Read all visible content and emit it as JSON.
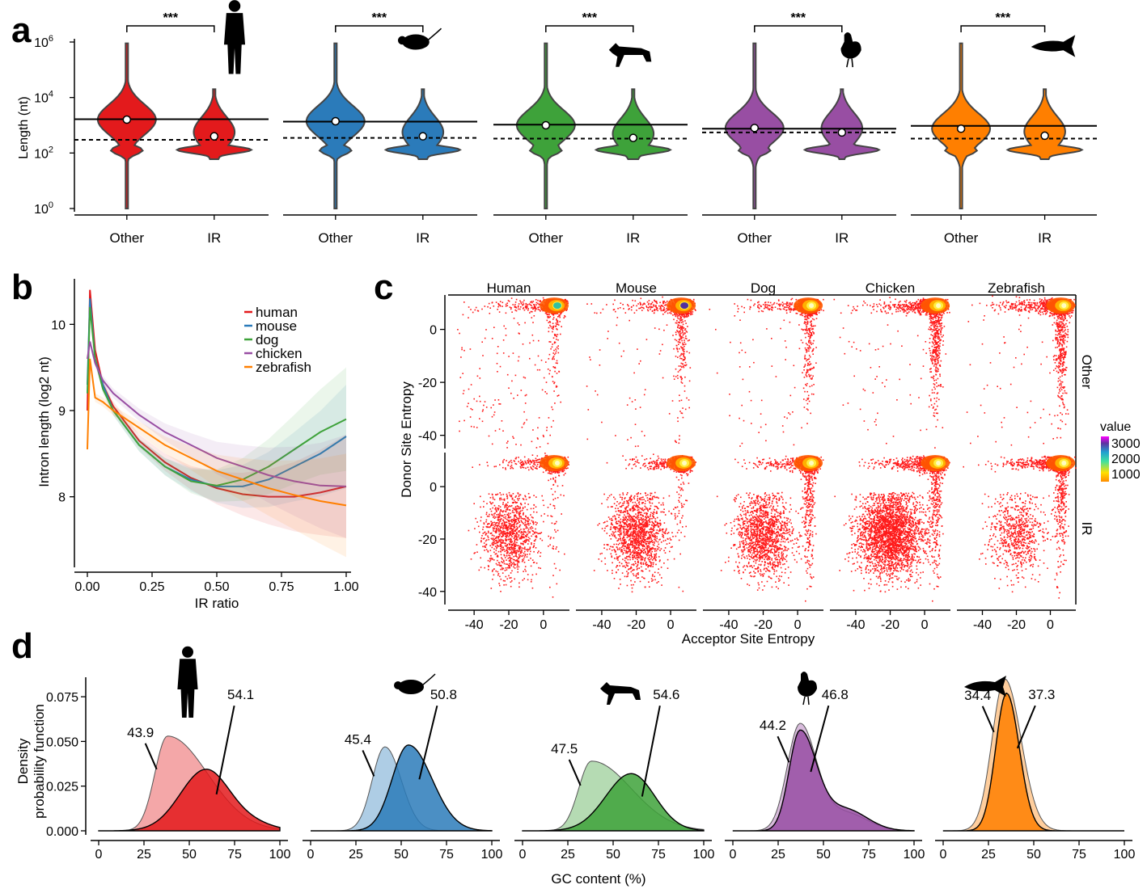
{
  "panels": {
    "a": "a",
    "b": "b",
    "c": "c",
    "d": "d"
  },
  "colors": {
    "human": "#e31a1c",
    "mouse": "#2b7bba",
    "dog": "#3ea23a",
    "chicken": "#984ea3",
    "zebrafish": "#ff7f00"
  },
  "chart_data": [
    {
      "id": "a",
      "type": "violin",
      "ylabel": "Length (nt)",
      "yscale": "log10",
      "ylim": [
        1,
        1000000
      ],
      "yticks": [
        {
          "value": 1,
          "label": "10",
          "exp": "0"
        },
        {
          "value": 100,
          "label": "10",
          "exp": "2"
        },
        {
          "value": 10000,
          "label": "10",
          "exp": "4"
        },
        {
          "value": 1000000,
          "label": "10",
          "exp": "6"
        }
      ],
      "categories": [
        "Other",
        "IR"
      ],
      "significance": "***",
      "species": [
        {
          "name": "human",
          "icon": "human-silhouette-icon",
          "other_median": 1600,
          "ir_median": 400,
          "other_line": 1650,
          "ir_line": 300
        },
        {
          "name": "mouse",
          "icon": "mouse-silhouette-icon",
          "other_median": 1400,
          "ir_median": 400,
          "other_line": 1350,
          "ir_line": 350
        },
        {
          "name": "dog",
          "icon": "dog-silhouette-icon",
          "other_median": 1000,
          "ir_median": 350,
          "other_line": 1050,
          "ir_line": 330
        },
        {
          "name": "chicken",
          "icon": "chicken-silhouette-icon",
          "other_median": 800,
          "ir_median": 550,
          "other_line": 750,
          "ir_line": 550
        },
        {
          "name": "zebrafish",
          "icon": "zebrafish-silhouette-icon",
          "other_median": 750,
          "ir_median": 420,
          "other_line": 950,
          "ir_line": 330
        }
      ]
    },
    {
      "id": "b",
      "type": "line",
      "xlabel": "IR ratio",
      "ylabel": "Intron length (log2 nt)",
      "xlim": [
        0,
        1
      ],
      "ylim": [
        7.2,
        10.5
      ],
      "xticks": [
        "0.00",
        "0.25",
        "0.50",
        "0.75",
        "1.00"
      ],
      "yticks": [
        "8",
        "9",
        "10"
      ],
      "series": [
        {
          "name": "human",
          "x": [
            0,
            0.01,
            0.03,
            0.06,
            0.1,
            0.2,
            0.3,
            0.4,
            0.5,
            0.6,
            0.7,
            0.8,
            0.9,
            1.0
          ],
          "y": [
            9.0,
            10.4,
            9.7,
            9.3,
            9.05,
            8.65,
            8.4,
            8.22,
            8.1,
            8.03,
            8.0,
            8.0,
            8.05,
            8.12
          ]
        },
        {
          "name": "mouse",
          "x": [
            0,
            0.01,
            0.03,
            0.06,
            0.1,
            0.2,
            0.3,
            0.4,
            0.5,
            0.6,
            0.7,
            0.8,
            0.9,
            1.0
          ],
          "y": [
            9.3,
            10.3,
            9.6,
            9.3,
            9.0,
            8.6,
            8.35,
            8.2,
            8.12,
            8.12,
            8.2,
            8.35,
            8.5,
            8.7
          ]
        },
        {
          "name": "dog",
          "x": [
            0,
            0.01,
            0.03,
            0.06,
            0.1,
            0.2,
            0.3,
            0.4,
            0.5,
            0.6,
            0.7,
            0.8,
            0.9,
            1.0
          ],
          "y": [
            9.2,
            10.2,
            9.6,
            9.25,
            9.0,
            8.6,
            8.35,
            8.18,
            8.13,
            8.2,
            8.35,
            8.55,
            8.75,
            8.9
          ]
        },
        {
          "name": "chicken",
          "x": [
            0,
            0.01,
            0.03,
            0.06,
            0.1,
            0.2,
            0.3,
            0.4,
            0.5,
            0.6,
            0.7,
            0.8,
            0.9,
            1.0
          ],
          "y": [
            9.6,
            9.8,
            9.55,
            9.35,
            9.2,
            8.95,
            8.75,
            8.6,
            8.45,
            8.35,
            8.25,
            8.18,
            8.13,
            8.12
          ]
        },
        {
          "name": "zebrafish",
          "x": [
            0,
            0.01,
            0.03,
            0.06,
            0.1,
            0.2,
            0.3,
            0.4,
            0.5,
            0.6,
            0.7,
            0.8,
            0.9,
            1.0
          ],
          "y": [
            8.55,
            9.6,
            9.15,
            9.1,
            9.0,
            8.8,
            8.6,
            8.45,
            8.3,
            8.2,
            8.1,
            8.02,
            7.95,
            7.9
          ]
        }
      ],
      "legend": [
        "human",
        "mouse",
        "dog",
        "chicken",
        "zebrafish"
      ],
      "legend_position": "top-right"
    },
    {
      "id": "c",
      "type": "scatter",
      "xlabel": "Acceptor Site Entropy",
      "ylabel": "Donor Site Entropy",
      "columns": [
        "Human",
        "Mouse",
        "Dog",
        "Chicken",
        "Zebrafish"
      ],
      "rows": [
        "Other",
        "IR"
      ],
      "xticks": [
        "-40",
        "-20",
        "0"
      ],
      "yticks": [
        "0",
        "-20",
        "-40"
      ],
      "xlim": [
        -55,
        15
      ],
      "ylim": [
        -45,
        13
      ],
      "legend_title": "value",
      "legend_values": [
        "3000",
        "2000",
        "1000"
      ],
      "hotspot": {
        "x": 8,
        "y": 9
      },
      "ir_cluster": {
        "x": -20,
        "y": -18,
        "sd": 8
      }
    },
    {
      "id": "d",
      "type": "area",
      "xlabel": "GC content (%)",
      "ylabel": "Density probability function",
      "ylabel_lines": [
        "Density",
        "probability  function"
      ],
      "xlim": [
        0,
        100
      ],
      "ylim": [
        0,
        0.085
      ],
      "xticks": [
        "0",
        "25",
        "50",
        "75",
        "100"
      ],
      "yticks": [
        "0.000",
        "0.025",
        "0.050",
        "0.075"
      ],
      "species": [
        {
          "name": "human",
          "icon": "human-silhouette-icon",
          "ir_label": "43.9",
          "other_label": "54.1",
          "ir_peak": 38,
          "ir_height": 0.053,
          "other_peak": 59,
          "other_height": 0.034
        },
        {
          "name": "mouse",
          "icon": "mouse-silhouette-icon",
          "ir_label": "45.4",
          "other_label": "50.8",
          "ir_peak": 41,
          "ir_height": 0.047,
          "other_peak": 54,
          "other_height": 0.048
        },
        {
          "name": "dog",
          "icon": "dog-silhouette-icon",
          "ir_label": "47.5",
          "other_label": "54.6",
          "ir_peak": 38,
          "ir_height": 0.039,
          "other_peak": 60,
          "other_height": 0.032
        },
        {
          "name": "chicken",
          "icon": "chicken-silhouette-icon",
          "ir_label": "44.2",
          "other_label": "46.8",
          "ir_peak": 37,
          "ir_height": 0.059,
          "other_peak": 37,
          "other_height": 0.055
        },
        {
          "name": "zebrafish",
          "icon": "zebrafish-silhouette-icon",
          "ir_label": "34.4",
          "other_label": "37.3",
          "ir_peak": 34,
          "ir_height": 0.085,
          "other_peak": 35,
          "other_height": 0.077
        }
      ]
    }
  ]
}
